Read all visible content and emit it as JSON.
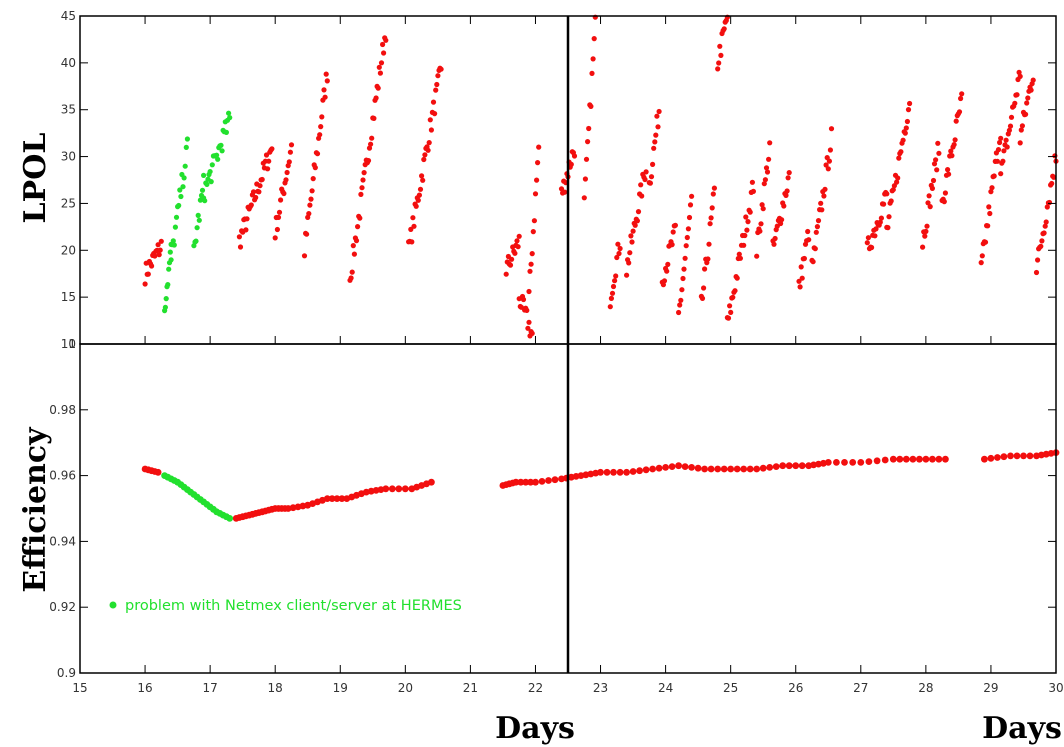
{
  "chart_data": [
    {
      "type": "scatter",
      "ylabel": "LPOL",
      "xlabel": "",
      "xlim": [
        15,
        30
      ],
      "ylim": [
        10,
        45
      ],
      "yticks": [
        10,
        15,
        20,
        25,
        30,
        35,
        40,
        45
      ],
      "divider_x": 22.5,
      "colors": {
        "normal": "#f20f0f",
        "problem": "#22e02e"
      },
      "series": [
        {
          "color_key": "normal",
          "segments": [
            [
              16.0,
              17.5,
              16.25,
              20.5
            ],
            [
              17.45,
              21.0,
              17.95,
              31.0
            ],
            [
              18.0,
              22.0,
              18.25,
              31.0
            ],
            [
              18.45,
              20.0,
              18.8,
              39.0
            ],
            [
              19.15,
              17.0,
              19.7,
              43.5
            ],
            [
              20.05,
              20.0,
              20.55,
              39.5
            ],
            [
              21.55,
              18.0,
              21.75,
              21.0
            ],
            [
              21.75,
              15.0,
              21.95,
              11.0
            ],
            [
              21.9,
              15.0,
              22.05,
              31.0
            ],
            [
              22.4,
              26.0,
              22.6,
              31.0
            ],
            [
              22.75,
              25.0,
              22.92,
              44.0
            ],
            [
              23.15,
              15.0,
              23.3,
              21.0
            ],
            [
              23.4,
              18.0,
              23.7,
              29.0
            ],
            [
              23.75,
              27.0,
              23.9,
              35.0
            ],
            [
              23.95,
              17.0,
              24.15,
              22.0
            ],
            [
              24.2,
              13.0,
              24.4,
              25.0
            ],
            [
              24.55,
              14.0,
              24.75,
              26.0
            ],
            [
              24.8,
              40.0,
              24.95,
              45.0
            ],
            [
              24.95,
              12.0,
              25.35,
              27.0
            ],
            [
              25.4,
              20.0,
              25.6,
              31.0
            ],
            [
              25.65,
              20.0,
              25.9,
              28.0
            ],
            [
              26.05,
              16.0,
              26.2,
              22.0
            ],
            [
              26.25,
              18.0,
              26.55,
              32.0
            ],
            [
              27.1,
              20.0,
              27.4,
              26.0
            ],
            [
              27.4,
              22.0,
              27.75,
              36.0
            ],
            [
              27.95,
              21.0,
              28.2,
              31.0
            ],
            [
              28.25,
              25.0,
              28.55,
              36.0
            ],
            [
              28.85,
              18.0,
              29.15,
              33.0
            ],
            [
              29.15,
              28.0,
              29.45,
              39.0
            ],
            [
              29.45,
              32.0,
              29.65,
              39.0
            ],
            [
              29.7,
              18.0,
              30.0,
              30.0
            ]
          ]
        },
        {
          "color_key": "problem",
          "segments": [
            [
              16.3,
              14.0,
              16.4,
              20.0
            ],
            [
              16.4,
              19.0,
              16.65,
              31.0
            ],
            [
              16.75,
              20.0,
              16.9,
              27.0
            ],
            [
              16.9,
              26.0,
              17.3,
              34.0
            ]
          ]
        }
      ]
    },
    {
      "type": "scatter",
      "ylabel": "Efficiency",
      "xlabel": "Days",
      "xlabel_second": "Days",
      "xlim": [
        15,
        30
      ],
      "ylim": [
        0.9,
        1.0
      ],
      "yticks": [
        0.9,
        0.92,
        0.94,
        0.96,
        0.98,
        1.0
      ],
      "ytick_labels": [
        "0.9",
        "0.92",
        "0.94",
        "0.96",
        "0.98",
        "1"
      ],
      "xticks": [
        15,
        16,
        17,
        18,
        19,
        20,
        21,
        22,
        23,
        24,
        25,
        26,
        27,
        28,
        29,
        30
      ],
      "divider_x": 22.5,
      "legend": {
        "text": "problem with Netmex client/server at HERMES",
        "color_key": "problem"
      },
      "series": [
        {
          "color_key": "normal",
          "points": [
            [
              16.0,
              0.962
            ],
            [
              16.2,
              0.961
            ],
            [
              17.4,
              0.947
            ],
            [
              17.6,
              0.948
            ],
            [
              17.8,
              0.949
            ],
            [
              18.0,
              0.95
            ],
            [
              18.2,
              0.95
            ],
            [
              18.5,
              0.951
            ],
            [
              18.8,
              0.953
            ],
            [
              19.1,
              0.953
            ],
            [
              19.4,
              0.955
            ],
            [
              19.7,
              0.956
            ],
            [
              20.1,
              0.956
            ],
            [
              20.4,
              0.958
            ],
            [
              21.5,
              0.957
            ],
            [
              21.7,
              0.958
            ],
            [
              22.0,
              0.958
            ],
            [
              22.4,
              0.959
            ],
            [
              22.7,
              0.96
            ],
            [
              23.0,
              0.961
            ],
            [
              23.4,
              0.961
            ],
            [
              23.8,
              0.962
            ],
            [
              24.2,
              0.963
            ],
            [
              24.6,
              0.962
            ],
            [
              25.0,
              0.962
            ],
            [
              25.4,
              0.962
            ],
            [
              25.8,
              0.963
            ],
            [
              26.2,
              0.963
            ],
            [
              26.5,
              0.964
            ],
            [
              27.0,
              0.964
            ],
            [
              27.5,
              0.965
            ],
            [
              27.9,
              0.965
            ],
            [
              28.3,
              0.965
            ],
            [
              28.9,
              0.965
            ],
            [
              29.3,
              0.966
            ],
            [
              29.7,
              0.966
            ],
            [
              30.0,
              0.967
            ]
          ]
        },
        {
          "color_key": "problem",
          "points": [
            [
              16.3,
              0.96
            ],
            [
              16.5,
              0.958
            ],
            [
              16.7,
              0.955
            ],
            [
              16.9,
              0.952
            ],
            [
              17.1,
              0.949
            ],
            [
              17.3,
              0.947
            ]
          ]
        }
      ]
    }
  ]
}
